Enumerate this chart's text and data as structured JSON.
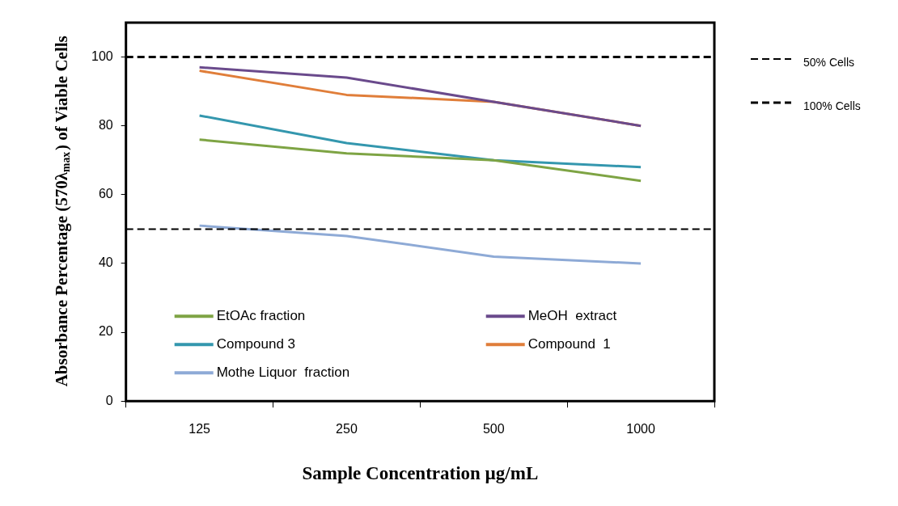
{
  "chart_data": {
    "type": "line",
    "xlabel": "Sample Concentration µg/mL",
    "ylabel": "Absorbance Percentage (570λ$_{max}$) of Viable Cells",
    "categories": [
      "125",
      "250",
      "500",
      "1000"
    ],
    "series": [
      {
        "name": "EtOAc fraction",
        "color": "#7ea444",
        "values": [
          76,
          72,
          70,
          64
        ]
      },
      {
        "name": "MeOH  extract",
        "color": "#6a4a8c",
        "values": [
          97,
          94,
          87,
          80
        ]
      },
      {
        "name": "Compound 3",
        "color": "#3497ae",
        "values": [
          83,
          75,
          70,
          68
        ]
      },
      {
        "name": "Compound  1",
        "color": "#e07e3a",
        "values": [
          96,
          89,
          87,
          80
        ]
      },
      {
        "name": "Mothe Liquor  fraction",
        "color": "#8eaad6",
        "values": [
          51,
          48,
          42,
          40
        ]
      }
    ],
    "ref_lines": [
      {
        "axis": "y",
        "value": 50,
        "label": "50% Cells",
        "color": "#000000",
        "line_style": "dashed"
      },
      {
        "axis": "y",
        "value": 100,
        "label": "100% Cells",
        "color": "#000000",
        "line_style": "dashed"
      }
    ],
    "ylim": [
      0,
      110
    ],
    "yticks": [
      0,
      20,
      40,
      60,
      80,
      100
    ],
    "grid": false,
    "legend": "bottom",
    "marker": "none",
    "line_style": "solid"
  }
}
